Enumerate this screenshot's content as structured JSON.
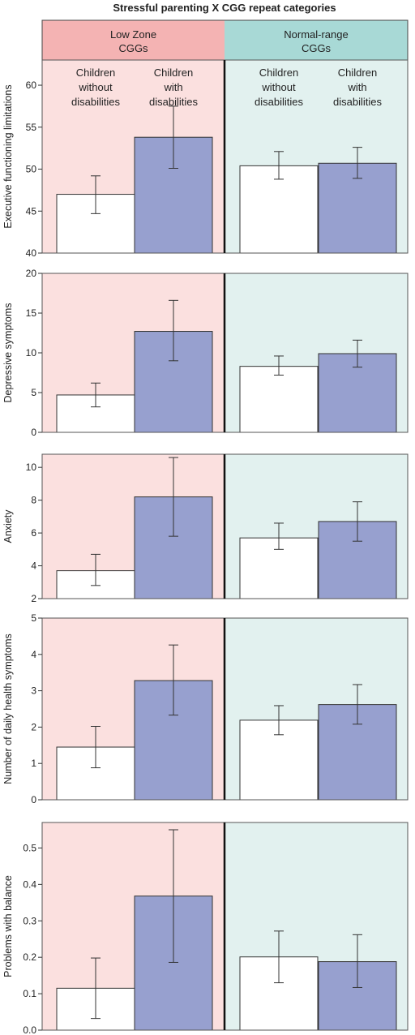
{
  "chart_data": {
    "type": "bar",
    "title": "Stressful parenting X CGG repeat categories",
    "groups": [
      {
        "name": "Low Zone CGGs",
        "lines": [
          "Low Zone",
          "CGGs"
        ],
        "color": "#fbe0df",
        "header_color": "#f4b3b3"
      },
      {
        "name": "Normal-range CGGs",
        "lines": [
          "Normal-range",
          "CGGs"
        ],
        "color": "#e2f1ef",
        "header_color": "#a8d9d6"
      }
    ],
    "categories": [
      {
        "name": "Children without disabilities",
        "lines": [
          "Children",
          "without",
          "disabilities"
        ],
        "color": "#ffffff"
      },
      {
        "name": "Children with disabilities",
        "lines": [
          "Children",
          "with",
          "disabilities"
        ],
        "color": "#97a0cf"
      }
    ],
    "panels": [
      {
        "ylabel": "Executive functioning limitations",
        "ylim": [
          40,
          63
        ],
        "ticks": [
          40,
          45,
          50,
          55,
          60
        ],
        "tick_labels": [
          "40",
          "45",
          "50",
          "55",
          "60"
        ],
        "values": [
          [
            47.0,
            53.8
          ],
          [
            50.4,
            50.7
          ]
        ],
        "err_low": [
          [
            44.7,
            50.1
          ],
          [
            48.8,
            48.9
          ]
        ],
        "err_high": [
          [
            49.2,
            57.5
          ],
          [
            52.1,
            52.6
          ]
        ]
      },
      {
        "ylabel": "Depressive symptoms",
        "ylim": [
          0,
          20
        ],
        "ticks": [
          0,
          5,
          10,
          15,
          20
        ],
        "tick_labels": [
          "0",
          "5",
          "10",
          "15",
          "20"
        ],
        "values": [
          [
            4.7,
            12.7
          ],
          [
            8.3,
            9.9
          ]
        ],
        "err_low": [
          [
            3.2,
            9.0
          ],
          [
            7.2,
            8.2
          ]
        ],
        "err_high": [
          [
            6.2,
            16.6
          ],
          [
            9.6,
            11.6
          ]
        ]
      },
      {
        "ylabel": "Anxiety",
        "ylim": [
          2,
          10.8
        ],
        "ticks": [
          2,
          4,
          6,
          8,
          10
        ],
        "tick_labels": [
          "2",
          "4",
          "6",
          "8",
          "10"
        ],
        "values": [
          [
            3.7,
            8.2
          ],
          [
            5.7,
            6.7
          ]
        ],
        "err_low": [
          [
            2.8,
            5.8
          ],
          [
            5.0,
            5.5
          ]
        ],
        "err_high": [
          [
            4.7,
            10.6
          ],
          [
            6.6,
            7.9
          ]
        ]
      },
      {
        "ylabel": "Number of daily health symptoms",
        "ylim": [
          0,
          5
        ],
        "ticks": [
          0,
          1,
          2,
          3,
          4,
          5
        ],
        "tick_labels": [
          "0",
          "1",
          "2",
          "3",
          "4",
          "5"
        ],
        "values": [
          [
            1.45,
            3.28
          ],
          [
            2.19,
            2.62
          ]
        ],
        "err_low": [
          [
            0.88,
            2.33
          ],
          [
            1.79,
            2.08
          ]
        ],
        "err_high": [
          [
            2.02,
            4.26
          ],
          [
            2.59,
            3.17
          ]
        ]
      },
      {
        "ylabel": "Problems with balance",
        "ylim": [
          0,
          0.57
        ],
        "ticks": [
          0,
          0.1,
          0.2,
          0.3,
          0.4,
          0.5
        ],
        "tick_labels": [
          "0.0",
          "0.1",
          "0.2",
          "0.3",
          "0.4",
          "0.5"
        ],
        "values": [
          [
            0.115,
            0.368
          ],
          [
            0.201,
            0.188
          ]
        ],
        "err_low": [
          [
            0.032,
            0.186
          ],
          [
            0.13,
            0.117
          ]
        ],
        "err_high": [
          [
            0.198,
            0.55
          ],
          [
            0.272,
            0.262
          ]
        ]
      }
    ]
  }
}
